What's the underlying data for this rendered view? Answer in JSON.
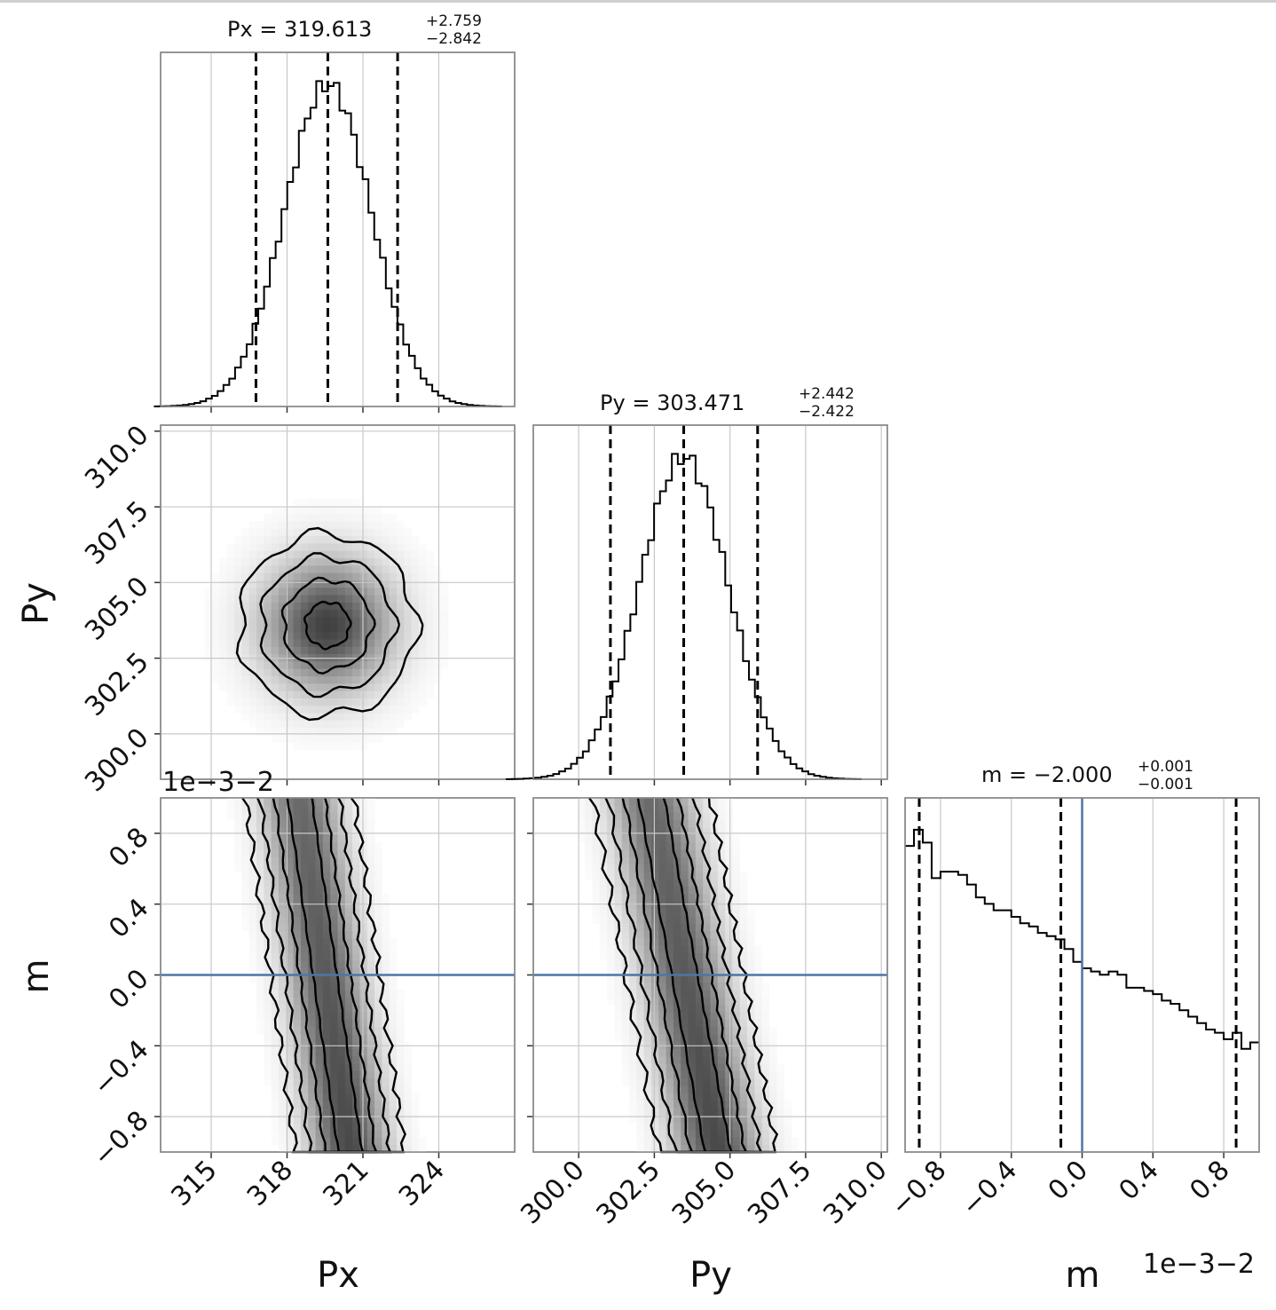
{
  "chart_data": {
    "type": "corner",
    "parameters": [
      "Px",
      "Py",
      "m"
    ],
    "axis_labels": {
      "Px": "Px",
      "Py": "Py",
      "m": "m"
    },
    "offset_text": "1e−3−2",
    "truths": {
      "m": 0.0
    },
    "colors": {
      "hist": "#000000",
      "truth": "#4c77a8",
      "contour": "#000000",
      "grid": "#c8c8c8"
    },
    "ranges": {
      "Px": [
        313,
        327
      ],
      "Py": [
        298.5,
        310.2
      ],
      "m": [
        -1.0,
        1.0
      ]
    },
    "ticks": {
      "Px": {
        "values": [
          315,
          318,
          321,
          324
        ],
        "labels": [
          "315",
          "318",
          "321",
          "324"
        ]
      },
      "Py": {
        "values": [
          300.0,
          302.5,
          305.0,
          307.5,
          310.0
        ],
        "labels": [
          "300.0",
          "302.5",
          "305.0",
          "307.5",
          "310.0"
        ]
      },
      "m": {
        "values": [
          -0.8,
          -0.4,
          0.0,
          0.4,
          0.8
        ],
        "labels": [
          "−0.8",
          "−0.4",
          "0.0",
          "0.4",
          "0.8"
        ]
      }
    },
    "titles": {
      "Px": {
        "label": "Px",
        "value": "319.613",
        "plus": "+2.759",
        "minus": "−2.842"
      },
      "Py": {
        "label": "Py",
        "value": "303.471",
        "plus": "+2.442",
        "minus": "−2.422"
      },
      "m": {
        "label": "m",
        "value": "−2.000",
        "plus": "+0.001",
        "minus": "−0.001"
      }
    },
    "quantiles": {
      "Px": [
        316.771,
        319.613,
        322.372
      ],
      "Py": [
        301.049,
        303.471,
        305.913
      ],
      "m": [
        -0.92,
        -0.12,
        0.87
      ]
    },
    "marginals": {
      "Px": {
        "center": 319.613,
        "sigma": 1.72
      },
      "Py": {
        "center": 303.471,
        "sigma": 1.47
      },
      "m": {
        "bins": [
          -1.0,
          -0.95,
          -0.9,
          -0.85,
          -0.8,
          -0.75,
          -0.7,
          -0.65,
          -0.6,
          -0.55,
          -0.5,
          -0.45,
          -0.4,
          -0.35,
          -0.3,
          -0.25,
          -0.2,
          -0.15,
          -0.1,
          -0.05,
          0.0,
          0.05,
          0.1,
          0.15,
          0.2,
          0.25,
          0.3,
          0.35,
          0.4,
          0.45,
          0.5,
          0.55,
          0.6,
          0.65,
          0.7,
          0.75,
          0.8,
          0.85,
          0.9,
          0.95,
          1.0
        ],
        "counts": [
          0.95,
          1.0,
          0.96,
          0.85,
          0.87,
          0.87,
          0.86,
          0.83,
          0.79,
          0.77,
          0.75,
          0.75,
          0.73,
          0.71,
          0.7,
          0.68,
          0.67,
          0.66,
          0.63,
          0.59,
          0.57,
          0.56,
          0.55,
          0.56,
          0.55,
          0.51,
          0.51,
          0.5,
          0.49,
          0.47,
          0.46,
          0.44,
          0.42,
          0.4,
          0.38,
          0.37,
          0.35,
          0.37,
          0.32,
          0.34,
          0.34
        ]
      }
    },
    "joint": {
      "Px_Py": {
        "center": [
          319.6,
          303.6
        ]
      },
      "Px_m": {
        "trend": "Px decreases slightly as m increases"
      },
      "Py_m": {
        "trend": "Py decreases slightly as m increases"
      }
    }
  }
}
